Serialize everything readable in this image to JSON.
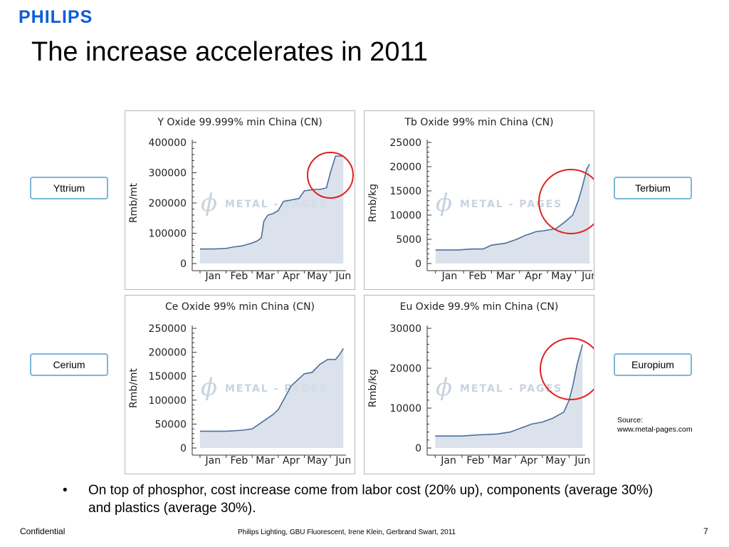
{
  "brand": "PHILIPS",
  "title": "The increase accelerates in 2011",
  "labels": {
    "yttrium": "Yttrium",
    "terbium": "Terbium",
    "cerium": "Cerium",
    "europium": "Europium"
  },
  "watermark": "METAL - PAGES",
  "source": {
    "line1": "Source:",
    "line2": "www.metal-pages.com"
  },
  "bullet": {
    "marker": "•",
    "text": "On top of phosphor, cost increase come from labor cost (20% up),  components (average 30%) and plastics (average 30%)."
  },
  "footer": {
    "left": "Confidential",
    "center": "Philips Lighting, GBU Fluorescent, Irene Klein, Gerbrand Swart, 2011",
    "page": "7"
  },
  "colors": {
    "brand": "#0b5ed7",
    "line": "#4a6f9c",
    "fill": "#d6dde8",
    "circle": "#e02020",
    "label_border": "#7ab8d9"
  },
  "chart_data": [
    {
      "type": "area",
      "title": "Y Oxide 99.999% min China (CN)",
      "ylabel": "Rmb/mt",
      "xlabel": "",
      "x_ticks": [
        "Jan",
        "Feb",
        "Mar",
        "Apr",
        "May",
        "Jun"
      ],
      "ylim": [
        0,
        400000
      ],
      "y_ticks": [
        "0",
        "100000",
        "200000",
        "300000",
        "400000"
      ],
      "grid": false,
      "highlight": "late Jun rise",
      "series": [
        {
          "x": [
            0,
            0.5,
            1,
            1.3,
            1.6,
            2.0,
            2.2,
            2.35,
            2.45,
            2.6,
            2.8,
            3.0,
            3.2,
            3.5,
            3.8,
            4.0,
            4.4,
            4.6,
            4.85,
            5.0,
            5.2,
            5.3,
            5.5
          ],
          "values": [
            48000,
            48000,
            50000,
            55000,
            58000,
            68000,
            75000,
            85000,
            140000,
            160000,
            165000,
            175000,
            205000,
            210000,
            215000,
            240000,
            245000,
            245000,
            250000,
            300000,
            355000,
            355000,
            355000
          ]
        }
      ]
    },
    {
      "type": "area",
      "title": "Tb Oxide 99% min China (CN)",
      "ylabel": "Rmb/kg",
      "xlabel": "",
      "x_ticks": [
        "Jan",
        "Feb",
        "Mar",
        "Apr",
        "May",
        "Jun"
      ],
      "ylim": [
        0,
        25000
      ],
      "y_ticks": [
        "0",
        "5000",
        "10000",
        "15000",
        "20000",
        "25000"
      ],
      "grid": false,
      "highlight": "May to Jun rise",
      "series": [
        {
          "x": [
            0,
            0.8,
            1.3,
            1.7,
            2.0,
            2.5,
            2.9,
            3.2,
            3.6,
            3.9,
            4.3,
            4.6,
            4.9,
            5.1,
            5.25,
            5.4,
            5.5
          ],
          "values": [
            2800,
            2800,
            3000,
            3000,
            3800,
            4200,
            5000,
            5800,
            6600,
            6800,
            7200,
            8500,
            10000,
            13000,
            16000,
            19500,
            20500
          ]
        }
      ]
    },
    {
      "type": "area",
      "title": "Ce Oxide 99% min China (CN)",
      "ylabel": "Rmb/mt",
      "xlabel": "",
      "x_ticks": [
        "Jan",
        "Feb",
        "Mar",
        "Apr",
        "May",
        "Jun"
      ],
      "ylim": [
        0,
        250000
      ],
      "y_ticks": [
        "0",
        "50000",
        "100000",
        "150000",
        "200000",
        "250000"
      ],
      "grid": false,
      "series": [
        {
          "x": [
            0,
            1.0,
            1.6,
            2.0,
            2.4,
            2.8,
            3.0,
            3.2,
            3.5,
            3.8,
            4.0,
            4.3,
            4.6,
            4.9,
            5.2,
            5.35,
            5.5
          ],
          "values": [
            35000,
            35000,
            37000,
            40000,
            55000,
            70000,
            80000,
            100000,
            130000,
            145000,
            155000,
            158000,
            175000,
            185000,
            185000,
            195000,
            208000
          ]
        }
      ]
    },
    {
      "type": "area",
      "title": "Eu Oxide 99.9% min China (CN)",
      "ylabel": "Rmb/kg",
      "xlabel": "",
      "x_ticks": [
        "Jan",
        "Feb",
        "Mar",
        "Apr",
        "May",
        "Jun"
      ],
      "ylim": [
        0,
        30000
      ],
      "y_ticks": [
        "0",
        "10000",
        "20000",
        "30000"
      ],
      "grid": false,
      "highlight": "May to Jun rise",
      "series": [
        {
          "x": [
            0,
            1.0,
            1.6,
            2.3,
            2.8,
            3.2,
            3.6,
            4.0,
            4.4,
            4.8,
            5.0,
            5.15,
            5.3,
            5.5
          ],
          "values": [
            3000,
            3000,
            3300,
            3500,
            4000,
            5000,
            6000,
            6500,
            7500,
            9000,
            12000,
            16000,
            21000,
            26000
          ]
        }
      ]
    }
  ]
}
